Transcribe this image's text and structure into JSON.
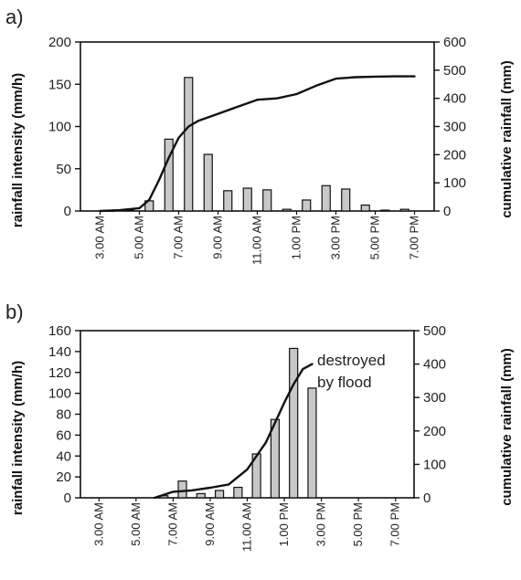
{
  "chart_data": [
    {
      "type": "bar",
      "panel_label": "a)",
      "x_tick_labels": [
        "3.00 AM",
        "5.00 AM",
        "7.00 AM",
        "9.00 AM",
        "11.00 AM",
        "1.00 PM",
        "3.00 PM",
        "5.00 PM",
        "7.00 PM"
      ],
      "ylabel": "rainfall intensity (mm/h)",
      "y2label": "cumulative rainfall (mm)",
      "ylim": [
        0,
        200
      ],
      "yticks": [
        0,
        50,
        100,
        150,
        200
      ],
      "y2lim": [
        0,
        600
      ],
      "y2ticks": [
        0,
        100,
        200,
        300,
        400,
        500,
        600
      ],
      "bars": {
        "x": [
          3.5,
          4.5,
          5.5,
          6.5,
          7.5,
          8.5,
          9.5,
          10.5,
          11.5,
          12.5,
          13.5,
          14.5,
          15.5,
          16.5,
          17.5,
          18.5
        ],
        "values": [
          0.5,
          1,
          12,
          85,
          158,
          67,
          24,
          27,
          25,
          2,
          13,
          30,
          26,
          7,
          1,
          2
        ]
      },
      "cumulative": {
        "x": [
          3,
          4,
          5,
          5.5,
          6,
          6.5,
          7,
          7.5,
          8,
          9,
          10,
          11,
          12,
          13,
          14,
          15,
          16,
          17,
          18,
          19
        ],
        "values": [
          0,
          3,
          10,
          40,
          110,
          190,
          260,
          300,
          320,
          345,
          370,
          395,
          400,
          415,
          445,
          470,
          475,
          477,
          478,
          478
        ]
      },
      "annotation": ""
    },
    {
      "type": "bar",
      "panel_label": "b)",
      "x_tick_labels": [
        "3.00 AM",
        "5.00 AM",
        "7.00 AM",
        "9.00 AM",
        "11.00 AM",
        "1.00 PM",
        "3.00 PM",
        "5.00 PM",
        "7.00 PM"
      ],
      "ylabel": "rainfall intensity (mm/h)",
      "y2label": "cumulative rainfall (mm)",
      "ylim": [
        0,
        160
      ],
      "yticks": [
        0,
        20,
        40,
        60,
        80,
        100,
        120,
        140,
        160
      ],
      "y2lim": [
        0,
        500
      ],
      "y2ticks": [
        0,
        100,
        200,
        300,
        400,
        500
      ],
      "bars": {
        "x": [
          6.5,
          7.5,
          8.5,
          9.5,
          10.5,
          11.5,
          12.5,
          13.5,
          14.5
        ],
        "values": [
          2,
          16,
          4,
          7,
          10,
          42,
          75,
          143,
          105
        ]
      },
      "cumulative": {
        "x": [
          6,
          7,
          8,
          9,
          10,
          11,
          12,
          13,
          13.5,
          14,
          14.5
        ],
        "values": [
          0,
          18,
          22,
          30,
          40,
          85,
          165,
          285,
          340,
          385,
          400
        ]
      },
      "annotation": "destroyed\nby flood"
    }
  ]
}
